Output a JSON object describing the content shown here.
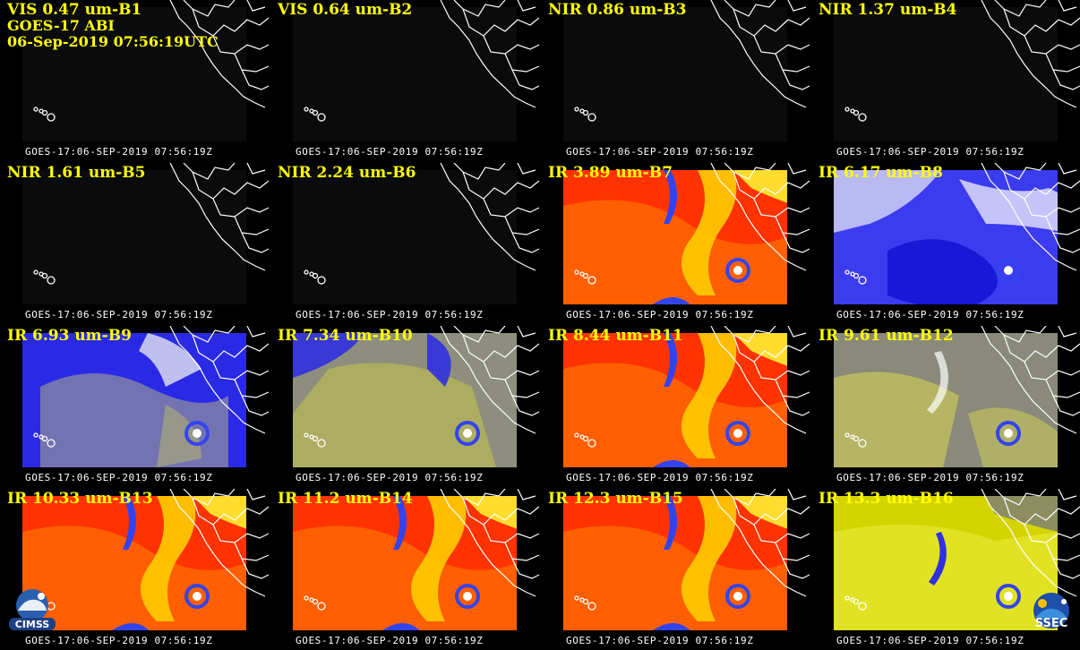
{
  "header": {
    "line2": "GOES-17 ABI",
    "line3": "06-Sep-2019 07:56:19UTC"
  },
  "panels": [
    {
      "label": "VIS 0.47 um-B1",
      "stamp": "GOES-17:06-SEP-2019 07:56:19Z",
      "style": "vis"
    },
    {
      "label": "VIS 0.64 um-B2",
      "stamp": "GOES-17:06-SEP-2019 07:56:19Z",
      "style": "vis"
    },
    {
      "label": "NIR 0.86 um-B3",
      "stamp": "GOES-17:06-SEP-2019 07:56:19Z",
      "style": "vis"
    },
    {
      "label": "NIR 1.37 um-B4",
      "stamp": "GOES-17:06-SEP-2019 07:56:19Z",
      "style": "vis"
    },
    {
      "label": "NIR 1.61 um-B5",
      "stamp": "GOES-17:06-SEP-2019 07:56:19Z",
      "style": "vis"
    },
    {
      "label": "NIR 2.24 um-B6",
      "stamp": "GOES-17:06-SEP-2019 07:56:19Z",
      "style": "vis"
    },
    {
      "label": "IR 3.89 um-B7",
      "stamp": "GOES-17:06-SEP-2019 07:56:19Z",
      "style": "ir"
    },
    {
      "label": "IR 6.17 um-B8",
      "stamp": "GOES-17:06-SEP-2019 07:56:19Z",
      "style": "wv1"
    },
    {
      "label": "IR 6.93 um-B9",
      "stamp": "GOES-17:06-SEP-2019 07:56:19Z",
      "style": "wv2"
    },
    {
      "label": "IR 7.34 um-B10",
      "stamp": "GOES-17:06-SEP-2019 07:56:19Z",
      "style": "wv3"
    },
    {
      "label": "IR 8.44 um-B11",
      "stamp": "GOES-17:06-SEP-2019 07:56:19Z",
      "style": "ir"
    },
    {
      "label": "IR 9.61 um-B12",
      "stamp": "GOES-17:06-SEP-2019 07:56:19Z",
      "style": "oz"
    },
    {
      "label": "IR 10.33 um-B13",
      "stamp": "GOES-17:06-SEP-2019 07:56:19Z",
      "style": "ir"
    },
    {
      "label": "IR 11.2 um-B14",
      "stamp": "GOES-17:06-SEP-2019 07:56:19Z",
      "style": "ir"
    },
    {
      "label": "IR 12.3 um-B15",
      "stamp": "GOES-17:06-SEP-2019 07:56:19Z",
      "style": "ir"
    },
    {
      "label": "IR 13.3 um-B16",
      "stamp": "GOES-17:06-SEP-2019 07:56:19Z",
      "style": "co2"
    }
  ],
  "logos": {
    "left": "CIMSS",
    "right": "SSEC"
  },
  "colors": {
    "label": "#ffff00",
    "stamp": "#ffffff",
    "map_outline": "#ffffff",
    "ir_warm": "#ff3300",
    "ir_mid": "#ffcc00",
    "ir_cold": "#3344ee",
    "wv_moist": "#1111dd",
    "wv_dry": "#aaaaee",
    "background": "#000000"
  }
}
